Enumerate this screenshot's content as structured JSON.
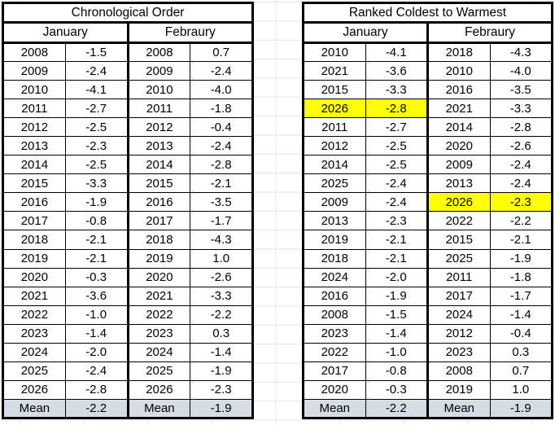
{
  "colors": {
    "highlight": "#FFFF00",
    "mean_row_bg": "#D6DCE4",
    "border": "#000000",
    "gridline": "#E4E4E4"
  },
  "left_table": {
    "title": "Chronological Order",
    "headers": [
      "January",
      "Febraury"
    ],
    "rows": [
      {
        "cells": [
          "2008",
          "-1.5",
          "2008",
          "0.7"
        ]
      },
      {
        "cells": [
          "2009",
          "-2.4",
          "2009",
          "-2.4"
        ]
      },
      {
        "cells": [
          "2010",
          "-4.1",
          "2010",
          "-4.0"
        ]
      },
      {
        "cells": [
          "2011",
          "-2.7",
          "2011",
          "-1.8"
        ]
      },
      {
        "cells": [
          "2012",
          "-2.5",
          "2012",
          "-0.4"
        ]
      },
      {
        "cells": [
          "2013",
          "-2.3",
          "2013",
          "-2.4"
        ]
      },
      {
        "cells": [
          "2014",
          "-2.5",
          "2014",
          "-2.8"
        ]
      },
      {
        "cells": [
          "2015",
          "-3.3",
          "2015",
          "-2.1"
        ]
      },
      {
        "cells": [
          "2016",
          "-1.9",
          "2016",
          "-3.5"
        ]
      },
      {
        "cells": [
          "2017",
          "-0.8",
          "2017",
          "-1.7"
        ]
      },
      {
        "cells": [
          "2018",
          "-2.1",
          "2018",
          "-4.3"
        ]
      },
      {
        "cells": [
          "2019",
          "-2.1",
          "2019",
          "1.0"
        ]
      },
      {
        "cells": [
          "2020",
          "-0.3",
          "2020",
          "-2.6"
        ]
      },
      {
        "cells": [
          "2021",
          "-3.6",
          "2021",
          "-3.3"
        ]
      },
      {
        "cells": [
          "2022",
          "-1.0",
          "2022",
          "-2.2"
        ]
      },
      {
        "cells": [
          "2023",
          "-1.4",
          "2023",
          "0.3"
        ]
      },
      {
        "cells": [
          "2024",
          "-2.0",
          "2024",
          "-1.4"
        ]
      },
      {
        "cells": [
          "2025",
          "-2.4",
          "2025",
          "-1.9"
        ]
      },
      {
        "cells": [
          "2026",
          "-2.8",
          "2026",
          "-2.3"
        ]
      }
    ],
    "mean": [
      "Mean",
      "-2.2",
      "Mean",
      "-1.9"
    ]
  },
  "right_table": {
    "title": "Ranked Coldest to Warmest",
    "headers": [
      "January",
      "Febraury"
    ],
    "rows": [
      {
        "cells": [
          "2010",
          "-4.1",
          "2018",
          "-4.3"
        ]
      },
      {
        "cells": [
          "2021",
          "-3.6",
          "2010",
          "-4.0"
        ]
      },
      {
        "cells": [
          "2015",
          "-3.3",
          "2016",
          "-3.5"
        ]
      },
      {
        "cells": [
          "2026",
          "-2.8",
          "2021",
          "-3.3"
        ],
        "hl": [
          0,
          1
        ]
      },
      {
        "cells": [
          "2011",
          "-2.7",
          "2014",
          "-2.8"
        ]
      },
      {
        "cells": [
          "2012",
          "-2.5",
          "2020",
          "-2.6"
        ]
      },
      {
        "cells": [
          "2014",
          "-2.5",
          "2009",
          "-2.4"
        ]
      },
      {
        "cells": [
          "2025",
          "-2.4",
          "2013",
          "-2.4"
        ]
      },
      {
        "cells": [
          "2009",
          "-2.4",
          "2026",
          "-2.3"
        ],
        "hl": [
          2,
          3
        ]
      },
      {
        "cells": [
          "2013",
          "-2.3",
          "2022",
          "-2.2"
        ]
      },
      {
        "cells": [
          "2019",
          "-2.1",
          "2015",
          "-2.1"
        ]
      },
      {
        "cells": [
          "2018",
          "-2.1",
          "2025",
          "-1.9"
        ]
      },
      {
        "cells": [
          "2024",
          "-2.0",
          "2011",
          "-1.8"
        ]
      },
      {
        "cells": [
          "2016",
          "-1.9",
          "2017",
          "-1.7"
        ]
      },
      {
        "cells": [
          "2008",
          "-1.5",
          "2024",
          "-1.4"
        ]
      },
      {
        "cells": [
          "2023",
          "-1.4",
          "2012",
          "-0.4"
        ]
      },
      {
        "cells": [
          "2022",
          "-1.0",
          "2023",
          "0.3"
        ]
      },
      {
        "cells": [
          "2017",
          "-0.8",
          "2008",
          "0.7"
        ]
      },
      {
        "cells": [
          "2020",
          "-0.3",
          "2019",
          "1.0"
        ]
      }
    ],
    "mean": [
      "Mean",
      "-2.2",
      "Mean",
      "-1.9"
    ]
  }
}
